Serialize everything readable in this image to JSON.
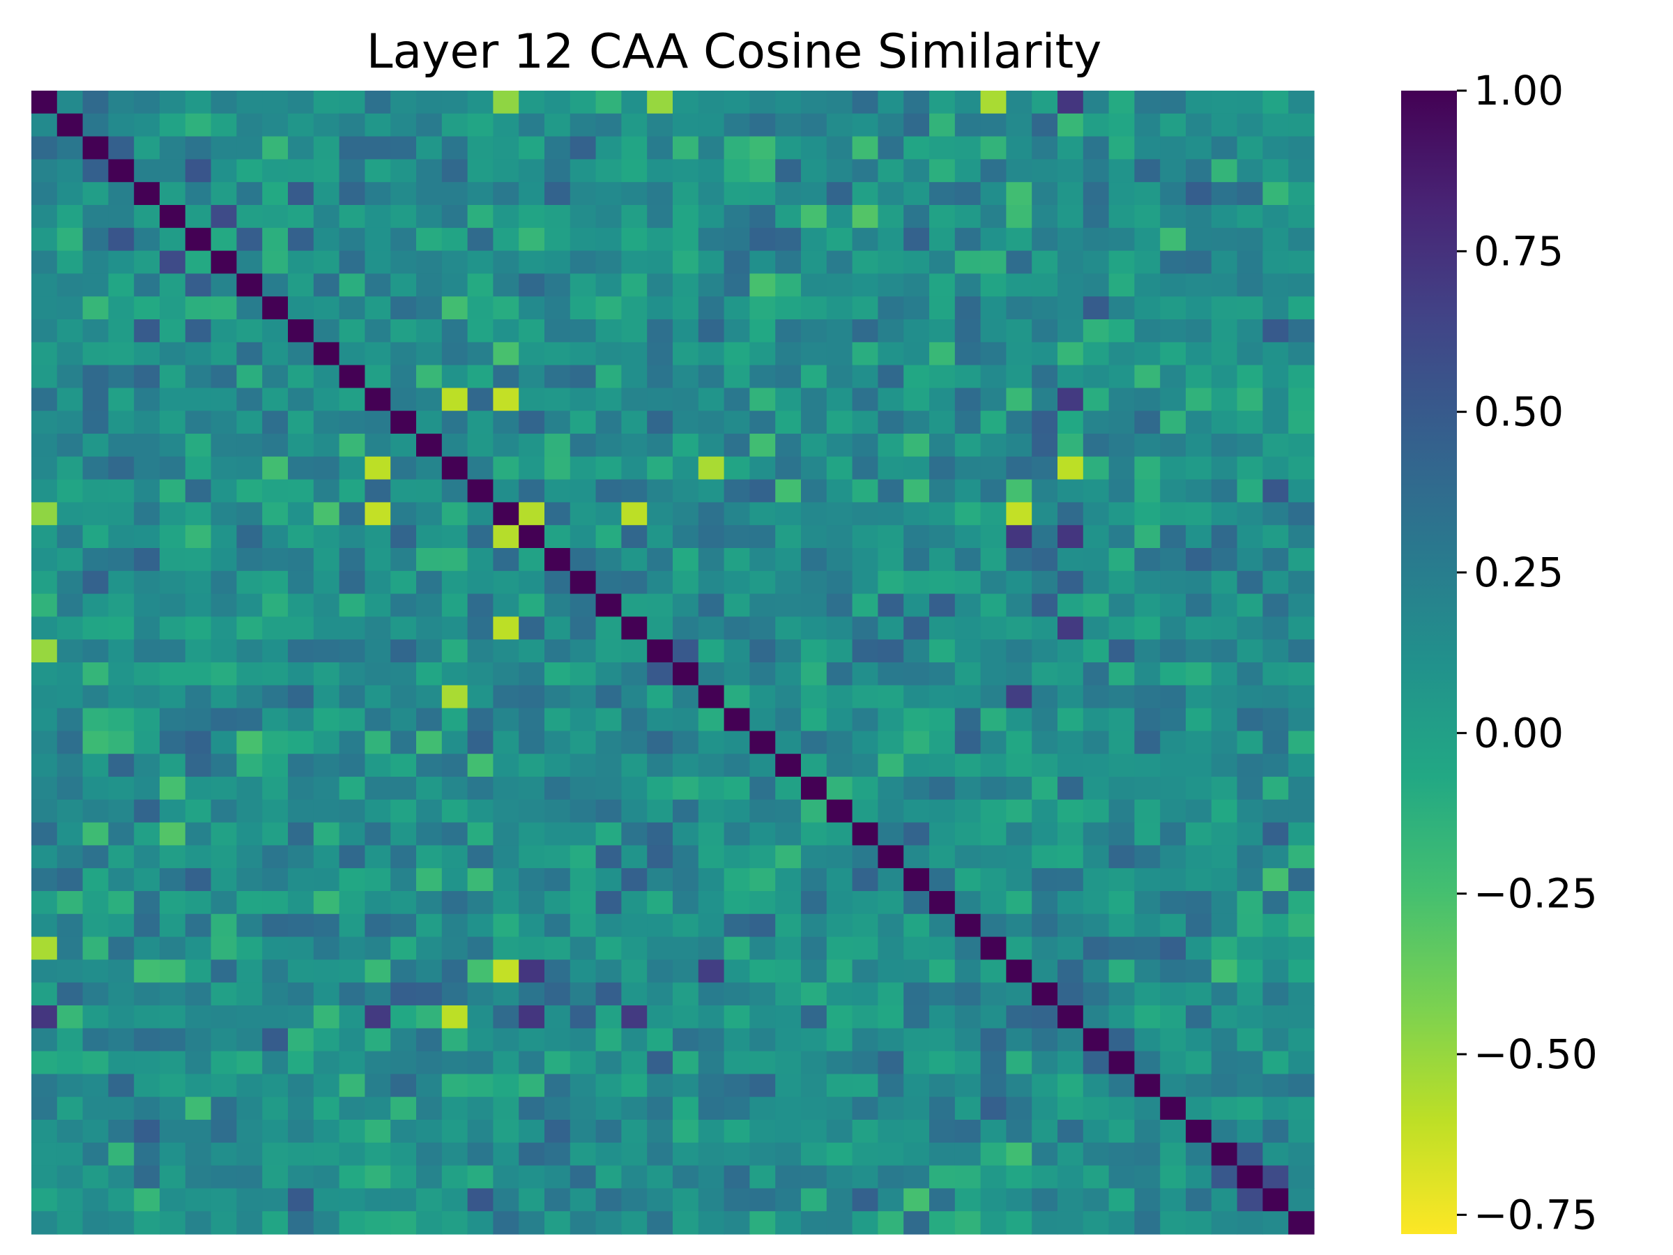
{
  "chart_data": {
    "type": "heatmap",
    "title": "Layer 12 CAA Cosine Similarity",
    "rows": 50,
    "cols": 50,
    "diagonal_value": 1.0,
    "value_range": [
      -0.78,
      1.0
    ],
    "colormap": "viridis_r",
    "colorbar": {
      "ticks": [
        1.0,
        0.75,
        0.5,
        0.25,
        0.0,
        -0.25,
        -0.5,
        -0.75
      ],
      "tick_labels": [
        "1.00",
        "0.75",
        "0.50",
        "0.25",
        "0.00",
        "−0.25",
        "−0.50",
        "−0.75"
      ]
    },
    "xlabel": "",
    "ylabel": "",
    "axis_ticks_visible": false,
    "notable_cells": [
      {
        "row": 0,
        "col": 37,
        "value": -0.55
      },
      {
        "row": 0,
        "col": 18,
        "value": -0.48
      },
      {
        "row": 0,
        "col": 24,
        "value": -0.5
      },
      {
        "row": 13,
        "col": 18,
        "value": -0.62
      },
      {
        "row": 16,
        "col": 13,
        "value": -0.6
      },
      {
        "row": 16,
        "col": 26,
        "value": -0.55
      },
      {
        "row": 16,
        "col": 40,
        "value": -0.6
      },
      {
        "row": 19,
        "col": 18,
        "value": -0.58
      },
      {
        "row": 23,
        "col": 18,
        "value": -0.6
      },
      {
        "row": 38,
        "col": 18,
        "value": -0.62
      },
      {
        "row": 37,
        "col": 0,
        "value": -0.55
      },
      {
        "row": 24,
        "col": 0,
        "value": -0.5
      },
      {
        "row": 0,
        "col": 40,
        "value": 0.72
      },
      {
        "row": 13,
        "col": 40,
        "value": 0.7
      },
      {
        "row": 19,
        "col": 40,
        "value": 0.72
      },
      {
        "row": 23,
        "col": 40,
        "value": 0.7
      },
      {
        "row": 38,
        "col": 19,
        "value": 0.72
      },
      {
        "row": 38,
        "col": 26,
        "value": 0.68
      },
      {
        "row": 5,
        "col": 7,
        "value": 0.6
      },
      {
        "row": 47,
        "col": 48,
        "value": 0.6
      },
      {
        "row": 48,
        "col": 47,
        "value": 0.6
      }
    ]
  }
}
